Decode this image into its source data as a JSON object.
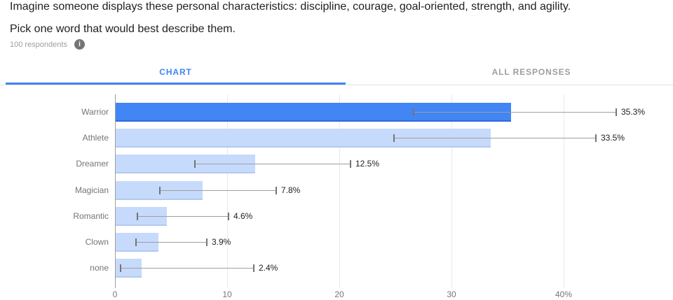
{
  "header": {
    "question_line1": "Imagine someone displays these personal characteristics: discipline, courage, goal-oriented, strength, and agility.",
    "question_line2": "Pick one word that would best describe them.",
    "respondents_label": "100 respondents"
  },
  "icons": {
    "info_glyph": "i"
  },
  "tabs": {
    "chart_label": "CHART",
    "all_responses_label": "ALL RESPONSES"
  },
  "colors": {
    "accent_blue": "#4285f4",
    "bar_highlight": "#4285f4",
    "bar_highlight_edge": "#2f6ad9",
    "bar_default": "#c6dafc",
    "bar_default_edge": "#b3c9f2",
    "error_line": "#9e9e9e",
    "error_cap": "#757575",
    "axis_line": "#9e9e9e",
    "gridline": "#e9e9e9",
    "text_dark": "#212121",
    "text_gray": "#757575",
    "text_light_gray": "#9e9e9e"
  },
  "chart_data": {
    "type": "bar",
    "orientation": "horizontal",
    "title": "",
    "xlabel": "",
    "ylabel": "",
    "categories": [
      "Warrior",
      "Athlete",
      "Dreamer",
      "Magician",
      "Romantic",
      "Clown",
      "none"
    ],
    "values": [
      35.3,
      33.5,
      12.5,
      7.8,
      4.6,
      3.9,
      2.4
    ],
    "value_labels": [
      "35.3%",
      "33.5%",
      "12.5%",
      "7.8%",
      "4.6%",
      "3.9%",
      "2.4%"
    ],
    "error_low": [
      26.6,
      24.9,
      7.1,
      4.0,
      2.0,
      1.9,
      0.5
    ],
    "error_high": [
      44.7,
      42.9,
      21.0,
      14.4,
      10.1,
      8.2,
      12.4
    ],
    "highlight_index": 0,
    "x_ticks": [
      0,
      10,
      20,
      30,
      40
    ],
    "x_tick_labels": [
      "0",
      "10",
      "20",
      "30",
      "40%"
    ],
    "xlim": [
      0,
      49.75
    ],
    "grid": true,
    "legend": "none"
  }
}
